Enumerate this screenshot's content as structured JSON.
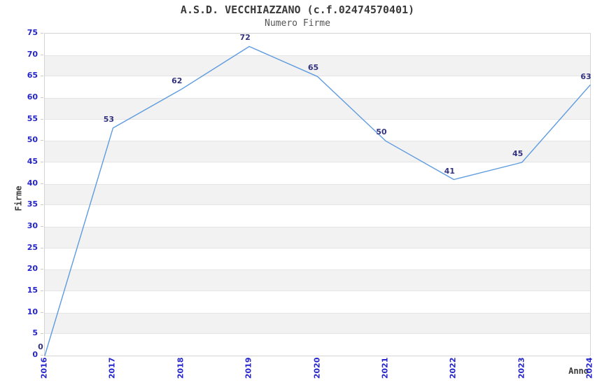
{
  "title": "A.S.D. VECCHIAZZANO (c.f.02474570401)",
  "subtitle": "Numero Firme",
  "chart_data": {
    "type": "line",
    "title": "A.S.D. VECCHIAZZANO (c.f.02474570401)",
    "subtitle": "Numero Firme",
    "xlabel": "Anno",
    "ylabel": "Firme",
    "categories": [
      "2016",
      "2017",
      "2018",
      "2019",
      "2020",
      "2021",
      "2022",
      "2023",
      "2024"
    ],
    "values": [
      0,
      53,
      62,
      72,
      65,
      50,
      41,
      45,
      63
    ],
    "point_labels": [
      "0",
      "53",
      "62",
      "72",
      "65",
      "50",
      "41",
      "45",
      "63"
    ],
    "ylim": [
      0,
      75
    ],
    "ytick_step": 5,
    "yticks": [
      0,
      5,
      10,
      15,
      20,
      25,
      30,
      35,
      40,
      45,
      50,
      55,
      60,
      65,
      70,
      75
    ],
    "grid": "horizontal-alternating-bands",
    "legend": "none",
    "colors": {
      "line": "#5f9bdf",
      "tick_label": "#2424cc",
      "point_label": "#333380",
      "band": "#f2f2f2",
      "band_edge": "#e4e4e4",
      "plot_border": "#d4d4d4",
      "title": "#3a3a3a",
      "subtitle": "#555555",
      "axis_title": "#3a3a3a"
    }
  }
}
